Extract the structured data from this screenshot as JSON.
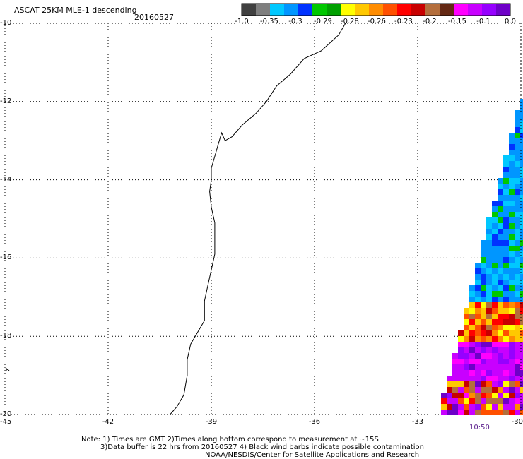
{
  "header": {
    "title": "ASCAT 25KM MLE-1 descending",
    "date": "20160527"
  },
  "colorbar": {
    "colors": [
      "#404040",
      "#7f7f7f",
      "#00c8ff",
      "#0096ff",
      "#0032ff",
      "#00c800",
      "#00a000",
      "#ffff00",
      "#ffc800",
      "#ff8c00",
      "#ff5000",
      "#ff0000",
      "#c80000",
      "#b46e3c",
      "#642814",
      "#ff00ff",
      "#c800ff",
      "#9600ff",
      "#6e00c8"
    ],
    "labels": [
      "-1.0",
      "-0.35",
      "-0.3",
      "-0.29",
      "-0.28",
      "-0.26",
      "-0.23",
      "-0.2",
      "-0.15",
      "-0.1",
      "0.0"
    ]
  },
  "axes": {
    "lat_labels": [
      "-10",
      "-12",
      "-14",
      "-16",
      "-18",
      "-20"
    ],
    "lon_labels": [
      "-45",
      "-42",
      "-39",
      "-36",
      "-33",
      "-30"
    ],
    "lat_range": [
      -20,
      -10
    ],
    "lon_range": [
      -45,
      -30
    ],
    "grid": "dotted"
  },
  "swath": {
    "time_label": "10:50"
  },
  "notes": {
    "line1": "Note: 1) Times are GMT 2)Times along bottom correspond to measurement at ~15S",
    "line2": "3)Data buffer is 22 hrs from 20160527 4) Black wind barbs indicate possible contamination",
    "line3": "NOAA/NESDIS/Center for Satellite Applications and Research"
  },
  "icons": {
    "barb": "wind-barb-icon"
  }
}
